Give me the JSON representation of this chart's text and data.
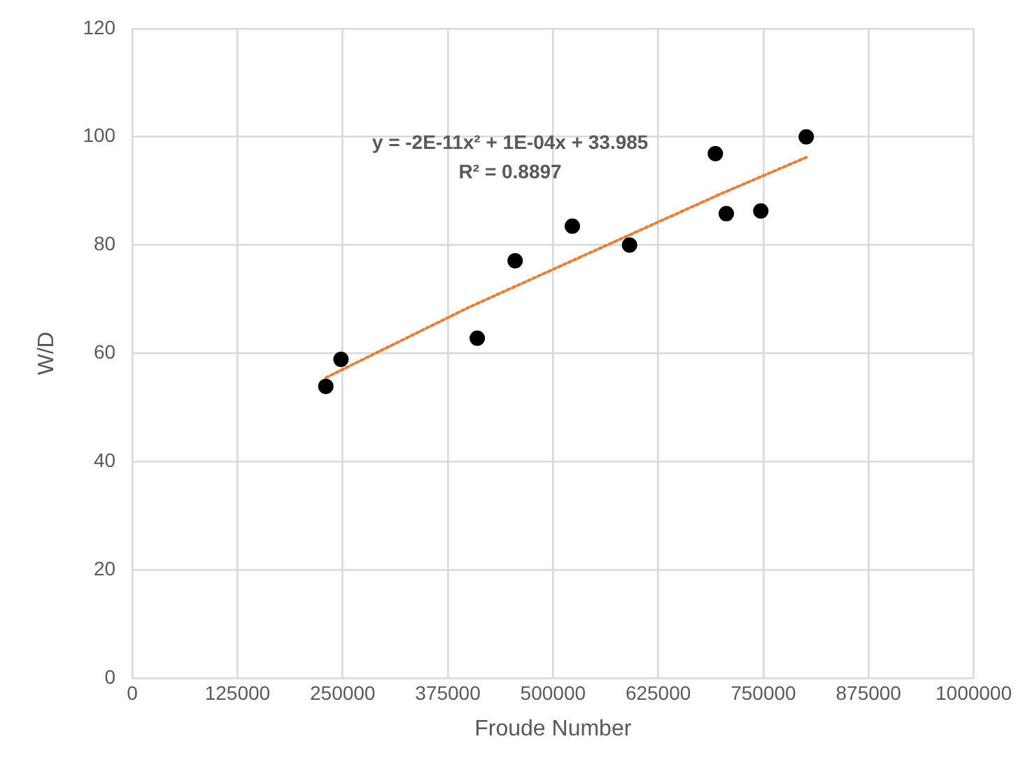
{
  "chart_data": {
    "type": "scatter",
    "xlabel": "Froude Number",
    "ylabel": "W/D",
    "xlim": [
      0,
      1000000
    ],
    "xticks": [
      0,
      125000,
      250000,
      375000,
      500000,
      625000,
      750000,
      875000,
      1000000
    ],
    "ylim": [
      0,
      120
    ],
    "yticks": [
      0,
      20,
      40,
      60,
      80,
      100,
      120
    ],
    "grid": true,
    "legend": false,
    "marker": "circle",
    "series": [
      {
        "color": "#000000",
        "x": [
          230000,
          248000,
          410000,
          455000,
          523000,
          591000,
          693000,
          706000,
          747000,
          801000
        ],
        "values": [
          53.9,
          58.9,
          62.8,
          77.1,
          83.5,
          80,
          96.9,
          85.8,
          86.3,
          100
        ]
      },
      {
        "type": "line",
        "color": "#ed7d31",
        "line_style": "dotted",
        "marker": "none",
        "x": [
          230000,
          400000,
          550000,
          700000,
          801000
        ],
        "values": [
          55.5,
          68.5,
          79,
          89.5,
          96.2
        ]
      }
    ],
    "annotations": [
      "y = -2E-11x² + 1E-04x + 33.985",
      "R² = 0.8897"
    ]
  }
}
